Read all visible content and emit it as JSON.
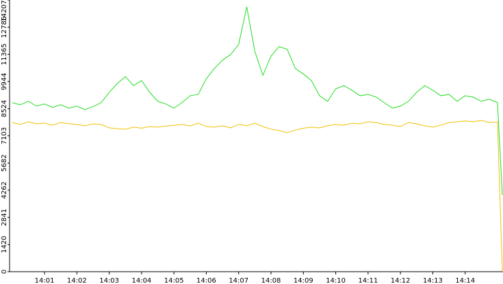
{
  "chart_data": {
    "type": "line",
    "x": [
      0,
      0.25,
      0.5,
      0.75,
      1,
      1.25,
      1.5,
      1.75,
      2,
      2.25,
      2.5,
      2.75,
      3,
      3.25,
      3.5,
      3.75,
      4,
      4.25,
      4.5,
      4.75,
      5,
      5.25,
      5.5,
      5.75,
      6,
      6.25,
      6.5,
      6.75,
      7,
      7.25,
      7.5,
      7.75,
      8,
      8.25,
      8.5,
      8.75,
      9,
      9.25,
      9.5,
      9.75,
      10,
      10.25,
      10.5,
      10.75,
      11,
      11.25,
      11.5,
      11.75,
      12,
      12.25,
      12.5,
      12.75,
      13,
      13.25,
      13.5,
      13.75,
      14,
      14.25,
      14.5,
      14.75,
      15,
      15.15
    ],
    "series": [
      {
        "color": "#22dd22",
        "values": [
          8840,
          8730,
          8910,
          8660,
          8770,
          8590,
          8730,
          8550,
          8660,
          8480,
          8630,
          8840,
          9380,
          9840,
          10200,
          9730,
          9990,
          9380,
          8910,
          8770,
          8550,
          8840,
          9200,
          9270,
          10090,
          10630,
          11060,
          11350,
          11880,
          13850,
          11520,
          10270,
          11270,
          11770,
          11630,
          10630,
          10340,
          9990,
          9200,
          8910,
          9560,
          9730,
          9490,
          9200,
          9270,
          9130,
          8840,
          8550,
          8660,
          8910,
          9380,
          9730,
          9490,
          9200,
          9270,
          8910,
          9200,
          9130,
          8910,
          9020,
          8840,
          4010
        ]
      },
      {
        "color": "#f0c000",
        "values": [
          7800,
          7700,
          7840,
          7730,
          7770,
          7660,
          7800,
          7740,
          7700,
          7630,
          7730,
          7700,
          7520,
          7480,
          7450,
          7560,
          7500,
          7590,
          7560,
          7620,
          7650,
          7700,
          7620,
          7760,
          7590,
          7560,
          7630,
          7520,
          7700,
          7630,
          7760,
          7590,
          7450,
          7380,
          7270,
          7410,
          7500,
          7560,
          7520,
          7630,
          7700,
          7660,
          7760,
          7730,
          7840,
          7800,
          7700,
          7660,
          7590,
          7800,
          7730,
          7630,
          7560,
          7660,
          7800,
          7840,
          7880,
          7840,
          7910,
          7800,
          7840,
          0
        ]
      }
    ],
    "xlim": [
      -0.08,
      15.17
    ],
    "xticks": [
      {
        "value": 1,
        "label": "14:01"
      },
      {
        "value": 2,
        "label": "14:02"
      },
      {
        "value": 3,
        "label": "14:03"
      },
      {
        "value": 4,
        "label": "14:04"
      },
      {
        "value": 5,
        "label": "14:05"
      },
      {
        "value": 6,
        "label": "14:06"
      },
      {
        "value": 7,
        "label": "14:07"
      },
      {
        "value": 8,
        "label": "14:08"
      },
      {
        "value": 9,
        "label": "14:09"
      },
      {
        "value": 10,
        "label": "14:10"
      },
      {
        "value": 11,
        "label": "14:11"
      },
      {
        "value": 12,
        "label": "14:12"
      },
      {
        "value": 13,
        "label": "14:13"
      },
      {
        "value": 14,
        "label": "14:14"
      }
    ],
    "ylim": [
      0,
      14207
    ],
    "yticks": [
      0,
      1420,
      2841,
      4262,
      5682,
      7103,
      8524,
      9944,
      11365,
      12786,
      14207
    ]
  }
}
